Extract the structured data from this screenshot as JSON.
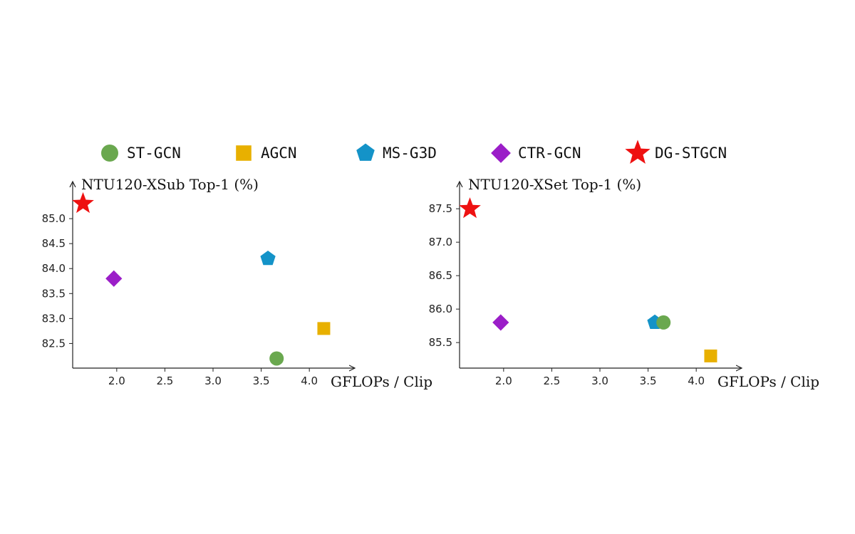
{
  "colors": {
    "ST-GCN": "#6aa84f",
    "AGCN": "#e8b000",
    "MS-G3D": "#1493c8",
    "CTR-GCN": "#9b1ec8",
    "DG-STGCN": "#ee1111"
  },
  "legend": [
    {
      "name": "ST-GCN",
      "marker": "circle"
    },
    {
      "name": "AGCN",
      "marker": "square"
    },
    {
      "name": "MS-G3D",
      "marker": "pentagon"
    },
    {
      "name": "CTR-GCN",
      "marker": "diamond"
    },
    {
      "name": "DG-STGCN",
      "marker": "star"
    }
  ],
  "chart_data": [
    {
      "type": "scatter",
      "title": "",
      "ylabel": "NTU120-XSub  Top-1 (%)",
      "xlabel": "GFLOPs / Clip",
      "x_ticks": [
        "2.0",
        "2.5",
        "3.0",
        "3.5",
        "4.0"
      ],
      "y_ticks": [
        "82.5",
        "83.0",
        "83.5",
        "84.0",
        "84.5",
        "85.0"
      ],
      "xlim": [
        1.55,
        4.45
      ],
      "ylim": [
        82.05,
        85.6
      ],
      "grid": false,
      "points": [
        {
          "series": "DG-STGCN",
          "x": 1.65,
          "y": 85.3
        },
        {
          "series": "CTR-GCN",
          "x": 1.97,
          "y": 83.8
        },
        {
          "series": "MS-G3D",
          "x": 3.57,
          "y": 84.2
        },
        {
          "series": "AGCN",
          "x": 4.15,
          "y": 82.8
        },
        {
          "series": "ST-GCN",
          "x": 3.66,
          "y": 82.2
        }
      ]
    },
    {
      "type": "scatter",
      "title": "",
      "ylabel": "NTU120-XSet  Top-1 (%)",
      "xlabel": "GFLOPs / Clip",
      "x_ticks": [
        "2.0",
        "2.5",
        "3.0",
        "3.5",
        "4.0"
      ],
      "y_ticks": [
        "85.5",
        "86.0",
        "86.5",
        "87.0",
        "87.5"
      ],
      "xlim": [
        1.55,
        4.45
      ],
      "ylim": [
        85.15,
        87.8
      ],
      "grid": false,
      "points": [
        {
          "series": "DG-STGCN",
          "x": 1.65,
          "y": 87.5
        },
        {
          "series": "CTR-GCN",
          "x": 1.97,
          "y": 85.8
        },
        {
          "series": "MS-G3D",
          "x": 3.57,
          "y": 85.8
        },
        {
          "series": "ST-GCN",
          "x": 3.66,
          "y": 85.8
        },
        {
          "series": "AGCN",
          "x": 4.15,
          "y": 85.3
        }
      ]
    }
  ]
}
